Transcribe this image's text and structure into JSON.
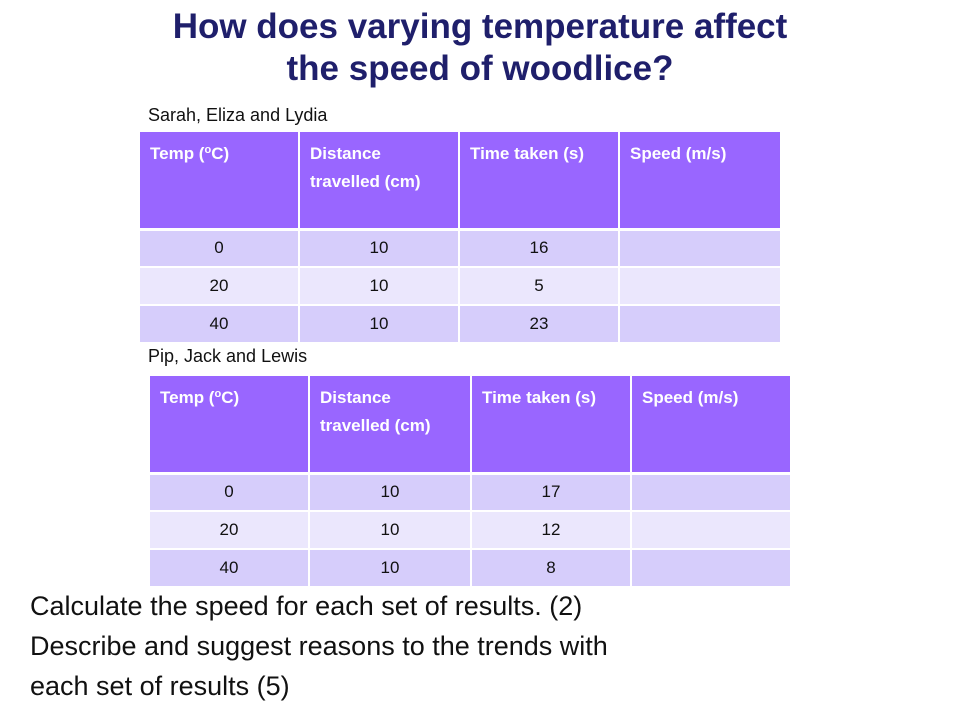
{
  "slide": {
    "title_line1": "How does varying temperature affect",
    "title_line2": "the speed of woodlice?"
  },
  "table1": {
    "group": "Sarah, Eliza and Lydia",
    "headers": {
      "temp_prefix": "Temp (",
      "temp_sup": "o",
      "temp_suffix": "C)",
      "distance": "Distance travelled (cm)",
      "time": "Time taken (s)",
      "speed": "Speed (m/s)"
    },
    "rows": [
      {
        "temp": "0",
        "distance": "10",
        "time": "16",
        "speed": ""
      },
      {
        "temp": "20",
        "distance": "10",
        "time": "5",
        "speed": ""
      },
      {
        "temp": "40",
        "distance": "10",
        "time": "23",
        "speed": ""
      }
    ]
  },
  "table2": {
    "group": "Pip, Jack and Lewis",
    "headers": {
      "temp_prefix": "Temp (",
      "temp_sup": "o",
      "temp_suffix": "C)",
      "distance": "Distance travelled (cm)",
      "time": "Time taken (s)",
      "speed": "Speed (m/s)"
    },
    "rows": [
      {
        "temp": "0",
        "distance": "10",
        "time": "17",
        "speed": ""
      },
      {
        "temp": "20",
        "distance": "10",
        "time": "12",
        "speed": ""
      },
      {
        "temp": "40",
        "distance": "10",
        "time": "8",
        "speed": ""
      }
    ]
  },
  "instructions": {
    "line1": "Calculate the speed for each set of results. (2)",
    "line2": "Describe and suggest reasons to the trends with",
    "line3": "each set of results (5)"
  },
  "colors": {
    "header_bg": "#9966ff",
    "row_dark": "#d6cdfb",
    "row_light": "#ebe7fd",
    "title": "#1f1f6b"
  }
}
